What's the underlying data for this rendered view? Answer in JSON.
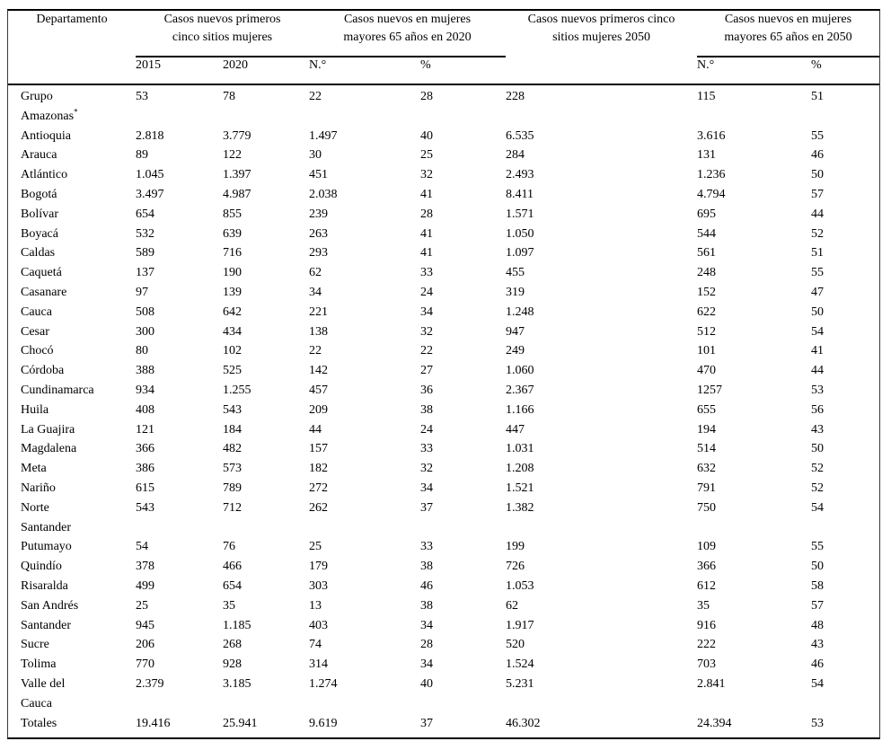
{
  "table": {
    "header": {
      "departamento": "Departamento",
      "group_new_cases_2015_2020": "Casos nuevos primeros\ncinco sitios mujeres",
      "group_over65_2020": "Casos nuevos en mujeres\nmayores 65 años en 2020",
      "group_new_cases_2050": "Casos nuevos primeros cinco\nsitios mujeres 2050",
      "group_over65_2050": "Casos nuevos en mujeres\nmayores 65 años en 2050"
    },
    "subheaders": [
      "",
      "2015",
      "2020",
      "N.°",
      "%",
      "",
      "N.°",
      "%"
    ],
    "rows": [
      {
        "name": "Grupo\nAmazonas*",
        "values": [
          "53",
          "78",
          "22",
          "28",
          "228",
          "115",
          "51"
        ]
      },
      {
        "name": "Antioquia",
        "values": [
          "2.818",
          "3.779",
          "1.497",
          "40",
          "6.535",
          "3.616",
          "55"
        ]
      },
      {
        "name": "Arauca",
        "values": [
          "89",
          "122",
          "30",
          "25",
          "284",
          "131",
          "46"
        ]
      },
      {
        "name": "Atlántico",
        "values": [
          "1.045",
          "1.397",
          "451",
          "32",
          "2.493",
          "1.236",
          "50"
        ]
      },
      {
        "name": "Bogotá",
        "values": [
          "3.497",
          "4.987",
          "2.038",
          "41",
          "8.411",
          "4.794",
          "57"
        ]
      },
      {
        "name": "Bolívar",
        "values": [
          "654",
          "855",
          "239",
          "28",
          "1.571",
          "695",
          "44"
        ]
      },
      {
        "name": "Boyacá",
        "values": [
          "532",
          "639",
          "263",
          "41",
          "1.050",
          "544",
          "52"
        ]
      },
      {
        "name": "Caldas",
        "values": [
          "589",
          "716",
          "293",
          "41",
          "1.097",
          "561",
          "51"
        ]
      },
      {
        "name": "Caquetá",
        "values": [
          "137",
          "190",
          "62",
          "33",
          "455",
          "248",
          "55"
        ]
      },
      {
        "name": "Casanare",
        "values": [
          "97",
          "139",
          "34",
          "24",
          "319",
          "152",
          "47"
        ]
      },
      {
        "name": "Cauca",
        "values": [
          "508",
          "642",
          "221",
          "34",
          "1.248",
          "622",
          "50"
        ]
      },
      {
        "name": "Cesar",
        "values": [
          "300",
          "434",
          "138",
          "32",
          "947",
          "512",
          "54"
        ]
      },
      {
        "name": "Chocó",
        "values": [
          "80",
          "102",
          "22",
          "22",
          "249",
          "101",
          "41"
        ]
      },
      {
        "name": "Córdoba",
        "values": [
          "388",
          "525",
          "142",
          "27",
          "1.060",
          "470",
          "44"
        ]
      },
      {
        "name": "Cundinamarca",
        "values": [
          "934",
          "1.255",
          "457",
          "36",
          "2.367",
          "1257",
          "53"
        ]
      },
      {
        "name": "Huila",
        "values": [
          "408",
          "543",
          "209",
          "38",
          "1.166",
          "655",
          "56"
        ]
      },
      {
        "name": "La Guajira",
        "values": [
          "121",
          "184",
          "44",
          "24",
          "447",
          "194",
          "43"
        ]
      },
      {
        "name": "Magdalena",
        "values": [
          "366",
          "482",
          "157",
          "33",
          "1.031",
          "514",
          "50"
        ]
      },
      {
        "name": "Meta",
        "values": [
          "386",
          "573",
          "182",
          "32",
          "1.208",
          "632",
          "52"
        ]
      },
      {
        "name": "Nariño",
        "values": [
          "615",
          "789",
          "272",
          "34",
          "1.521",
          "791",
          "52"
        ]
      },
      {
        "name": "Norte\nSantander",
        "values": [
          "543",
          "712",
          "262",
          "37",
          "1.382",
          "750",
          "54"
        ]
      },
      {
        "name": "Putumayo",
        "values": [
          "54",
          "76",
          "25",
          "33",
          "199",
          "109",
          "55"
        ]
      },
      {
        "name": "Quindío",
        "values": [
          "378",
          "466",
          "179",
          "38",
          "726",
          "366",
          "50"
        ]
      },
      {
        "name": "Risaralda",
        "values": [
          "499",
          "654",
          "303",
          "46",
          "1.053",
          "612",
          "58"
        ]
      },
      {
        "name": "San Andrés",
        "values": [
          "25",
          "35",
          "13",
          "38",
          "62",
          "35",
          "57"
        ]
      },
      {
        "name": "Santander",
        "values": [
          "945",
          "1.185",
          "403",
          "34",
          "1.917",
          "916",
          "48"
        ]
      },
      {
        "name": "Sucre",
        "values": [
          "206",
          "268",
          "74",
          "28",
          "520",
          "222",
          "43"
        ]
      },
      {
        "name": "Tolima",
        "values": [
          "770",
          "928",
          "314",
          "34",
          "1.524",
          "703",
          "46"
        ]
      },
      {
        "name": "Valle del\nCauca",
        "values": [
          "2.379",
          "3.185",
          "1.274",
          "40",
          "5.231",
          "2.841",
          "54"
        ]
      },
      {
        "name": "Totales",
        "values": [
          "19.416",
          "25.941",
          "9.619",
          "37",
          "46.302",
          "24.394",
          "53"
        ]
      }
    ]
  }
}
